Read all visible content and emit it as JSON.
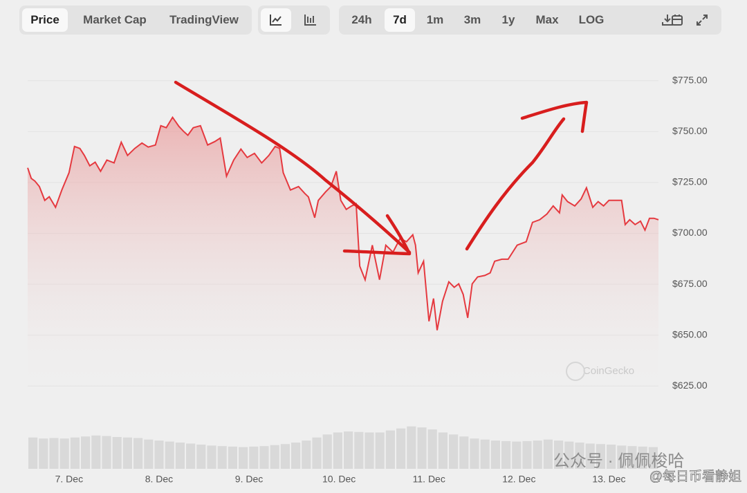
{
  "toolbar": {
    "tabs": [
      "Price",
      "Market Cap",
      "TradingView"
    ],
    "ranges": [
      "24h",
      "7d",
      "1m",
      "3m",
      "1y",
      "Max",
      "LOG"
    ]
  },
  "chart_data": [
    {
      "type": "line",
      "series": [
        {
          "color": "#e5393f",
          "x": [
            6.54,
            6.58,
            6.62,
            6.67,
            6.73,
            6.78,
            6.85,
            6.92,
            7,
            7.06,
            7.12,
            7.17,
            7.23,
            7.29,
            7.35,
            7.42,
            7.5,
            7.58,
            7.65,
            7.73,
            7.81,
            7.88,
            7.96,
            8.02,
            8.08,
            8.15,
            8.22,
            8.27,
            8.32,
            8.38,
            8.46,
            8.54,
            8.62,
            8.68,
            8.75,
            8.83,
            8.91,
            8.98,
            9.06,
            9.14,
            9.22,
            9.29,
            9.34,
            9.38,
            9.46,
            9.55,
            9.62,
            9.66,
            9.73,
            9.77,
            9.85,
            9.91,
            9.97,
            10.02,
            10.08,
            10.14,
            10.19,
            10.23,
            10.29,
            10.37,
            10.45,
            10.52,
            10.6,
            10.68,
            10.75,
            10.82,
            10.85,
            10.88,
            10.94,
            11,
            11.05,
            11.09,
            11.15,
            11.22,
            11.28,
            11.33,
            11.38,
            11.43,
            11.48,
            11.54,
            11.62,
            11.68,
            11.73,
            11.81,
            11.88,
            11.98,
            12.08,
            12.15,
            12.23,
            12.31,
            12.38,
            12.45,
            12.48,
            12.54,
            12.62,
            12.69,
            12.75,
            12.82,
            12.88,
            12.94,
            13,
            13.08,
            13.14,
            13.18,
            13.23,
            13.29,
            13.35,
            13.4,
            13.45,
            13.5,
            13.55
          ],
          "values": [
            732.2,
            727,
            725.7,
            723,
            716.2,
            718,
            712.8,
            721.3,
            729.8,
            742.7,
            741.7,
            738.3,
            733.2,
            735,
            730.5,
            736,
            734.6,
            744.8,
            738.3,
            741.7,
            744.4,
            742.4,
            743.4,
            752.9,
            751.9,
            757,
            752.6,
            750.2,
            748.2,
            751.9,
            752.9,
            743.4,
            745.1,
            746.8,
            728.1,
            736,
            741.4,
            737.3,
            739.3,
            734.6,
            738.3,
            742.7,
            741.7,
            729.8,
            721.3,
            723,
            719.6,
            717.9,
            707.7,
            716.2,
            720.3,
            723,
            730.5,
            716.2,
            711.8,
            713.5,
            714.5,
            683.9,
            677.2,
            694.2,
            677.2,
            694.2,
            690.8,
            697.6,
            695.9,
            699.3,
            694.2,
            680.6,
            686.3,
            656.8,
            668,
            652.4,
            666.6,
            676.2,
            673.5,
            675.2,
            670,
            658.5,
            675.2,
            678.6,
            679.3,
            680.6,
            686.3,
            687.3,
            687.3,
            694.2,
            695.9,
            705.4,
            706.7,
            709.5,
            713.5,
            710.1,
            718.9,
            715.6,
            713.5,
            716.9,
            722.4,
            712.8,
            715.6,
            713.5,
            716.2,
            716.2,
            716.2,
            704.3,
            706.7,
            704.3,
            706,
            701.6,
            707.4,
            707.4,
            706.7
          ]
        }
      ],
      "xlim": [
        6.54,
        13.55
      ],
      "xticks": [
        {
          "value": 7,
          "label": "7. Dec"
        },
        {
          "value": 8,
          "label": "8. Dec"
        },
        {
          "value": 9,
          "label": "9. Dec"
        },
        {
          "value": 10,
          "label": "10. Dec"
        },
        {
          "value": 11,
          "label": "11. Dec"
        },
        {
          "value": 12,
          "label": "12. Dec"
        },
        {
          "value": 13,
          "label": "13. Dec"
        }
      ],
      "ylim": [
        620,
        780
      ],
      "yticks": [
        {
          "value": 625,
          "label": "$625.00"
        },
        {
          "value": 650,
          "label": "$650.00"
        },
        {
          "value": 675,
          "label": "$675.00"
        },
        {
          "value": 700,
          "label": "$700.00"
        },
        {
          "value": 725,
          "label": "$725.00"
        },
        {
          "value": 750,
          "label": "$750.00"
        },
        {
          "value": 775,
          "label": "$775.00"
        }
      ],
      "grid": true
    },
    {
      "type": "bar",
      "color": "#d9d9d9",
      "ylim": [
        0,
        100
      ],
      "values": [
        62,
        60,
        61,
        60,
        62,
        64,
        66,
        65,
        63,
        62,
        61,
        58,
        56,
        54,
        52,
        50,
        48,
        46,
        45,
        44,
        43,
        44,
        45,
        47,
        49,
        52,
        56,
        62,
        68,
        72,
        74,
        73,
        72,
        72,
        76,
        80,
        84,
        82,
        78,
        72,
        68,
        64,
        60,
        58,
        56,
        55,
        54,
        55,
        56,
        58,
        56,
        54,
        52,
        50,
        49,
        48,
        46,
        45,
        44,
        43
      ]
    }
  ],
  "watermarks": {
    "source": "CoinGecko",
    "wechat": "公众号 · 佩佩梭哈",
    "handle": "@每日币看静姐"
  }
}
